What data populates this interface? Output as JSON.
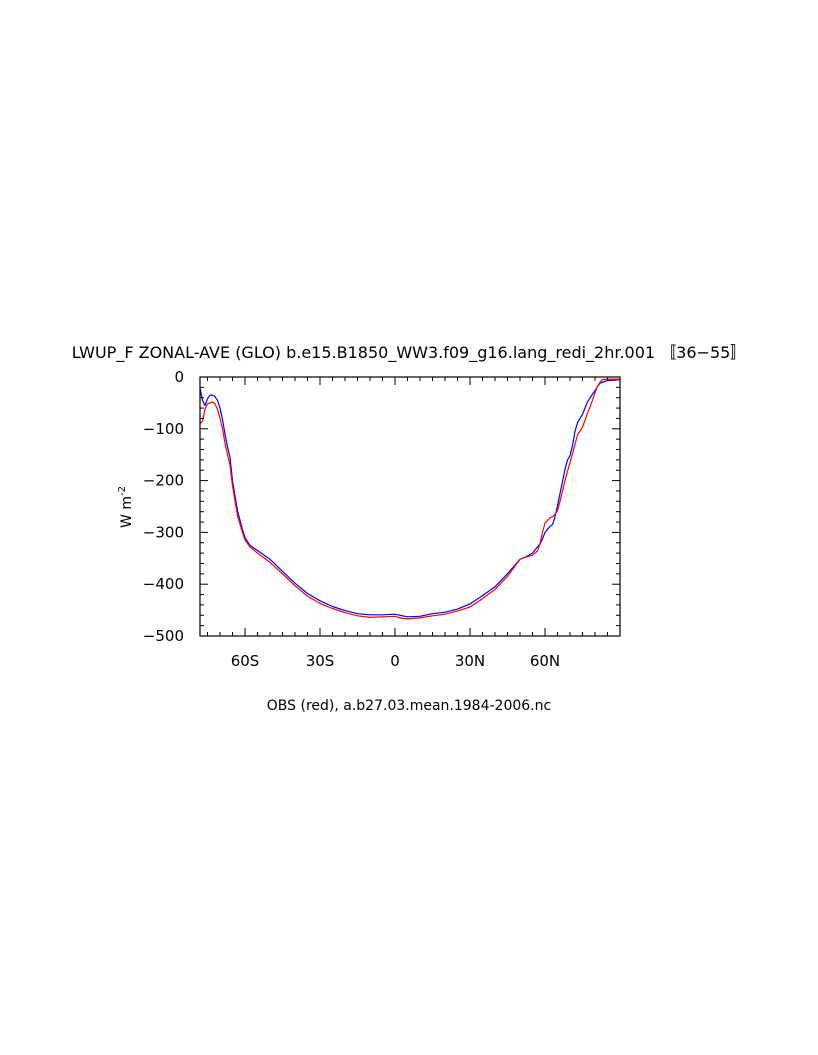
{
  "chart_data": {
    "type": "line",
    "title": "LWUP_F ZONAL-AVE (GLO) b.e15.B1850_WW3.f09_g16.lang_redi_2hr.001 〚36−55〛",
    "subtitle": "OBS (red), a.b27.03.mean.1984-2006.nc",
    "ylabel": "W m",
    "ylabel_exponent": "-2",
    "xlim": [
      -78,
      90
    ],
    "ylim": [
      -500,
      0
    ],
    "x_ticks": [
      {
        "value": -60,
        "label": "60S"
      },
      {
        "value": -30,
        "label": "30S"
      },
      {
        "value": 0,
        "label": "0"
      },
      {
        "value": 30,
        "label": "30N"
      },
      {
        "value": 60,
        "label": "60N"
      }
    ],
    "y_ticks": [
      {
        "value": 0,
        "label": "0"
      },
      {
        "value": -100,
        "label": "−100"
      },
      {
        "value": -200,
        "label": "−200"
      },
      {
        "value": -300,
        "label": "−300"
      },
      {
        "value": -400,
        "label": "−400"
      },
      {
        "value": -500,
        "label": "−500"
      }
    ],
    "series": [
      {
        "color": "#0000ff",
        "x": [
          -78,
          -77,
          -76,
          -75,
          -74,
          -73,
          -72,
          -71,
          -70,
          -69,
          -68,
          -67,
          -66,
          -65,
          -63,
          -61,
          -60,
          -58,
          -55,
          -50,
          -45,
          -40,
          -35,
          -30,
          -25,
          -20,
          -15,
          -10,
          -5,
          0,
          2,
          5,
          10,
          15,
          20,
          25,
          30,
          35,
          40,
          45,
          50,
          52,
          55,
          57,
          58,
          59,
          60,
          62,
          63,
          64,
          65,
          66,
          67,
          68,
          69,
          70,
          71,
          72,
          73,
          75,
          77,
          79,
          80,
          81,
          82,
          83,
          85,
          88,
          90
        ],
        "y": [
          -22,
          -45,
          -55,
          -42,
          -35,
          -35,
          -38,
          -45,
          -60,
          -82,
          -110,
          -135,
          -155,
          -200,
          -258,
          -295,
          -310,
          -325,
          -335,
          -352,
          -375,
          -398,
          -418,
          -432,
          -443,
          -451,
          -457,
          -459,
          -459,
          -458,
          -460,
          -463,
          -462,
          -457,
          -454,
          -448,
          -438,
          -422,
          -405,
          -380,
          -352,
          -348,
          -340,
          -328,
          -322,
          -313,
          -300,
          -288,
          -285,
          -270,
          -248,
          -225,
          -202,
          -178,
          -160,
          -152,
          -132,
          -105,
          -88,
          -72,
          -48,
          -33,
          -26,
          -18,
          -12,
          -10,
          -7,
          -6,
          -5
        ]
      },
      {
        "color": "#ff0000",
        "x": [
          -78,
          -77,
          -76,
          -75,
          -74,
          -73,
          -72,
          -71,
          -70,
          -69,
          -68,
          -67,
          -66,
          -65,
          -63,
          -61,
          -60,
          -58,
          -55,
          -50,
          -45,
          -40,
          -35,
          -30,
          -25,
          -20,
          -15,
          -10,
          -5,
          0,
          2,
          5,
          10,
          15,
          20,
          25,
          30,
          35,
          40,
          45,
          50,
          52,
          55,
          57,
          58,
          59,
          60,
          62,
          63,
          64,
          65,
          66,
          67,
          68,
          69,
          70,
          71,
          72,
          73,
          75,
          77,
          79,
          80,
          81,
          82,
          83,
          85,
          88,
          90
        ],
        "y": [
          -90,
          -85,
          -62,
          -52,
          -50,
          -48,
          -52,
          -62,
          -80,
          -100,
          -128,
          -150,
          -170,
          -210,
          -268,
          -300,
          -315,
          -328,
          -340,
          -358,
          -380,
          -403,
          -423,
          -437,
          -447,
          -455,
          -461,
          -464,
          -463,
          -462,
          -465,
          -467,
          -465,
          -461,
          -458,
          -452,
          -444,
          -428,
          -410,
          -385,
          -352,
          -348,
          -344,
          -336,
          -322,
          -300,
          -282,
          -272,
          -270,
          -265,
          -258,
          -240,
          -220,
          -200,
          -182,
          -165,
          -148,
          -130,
          -112,
          -97,
          -70,
          -45,
          -30,
          -18,
          -10,
          -5,
          -4,
          -4,
          -4
        ]
      }
    ]
  }
}
